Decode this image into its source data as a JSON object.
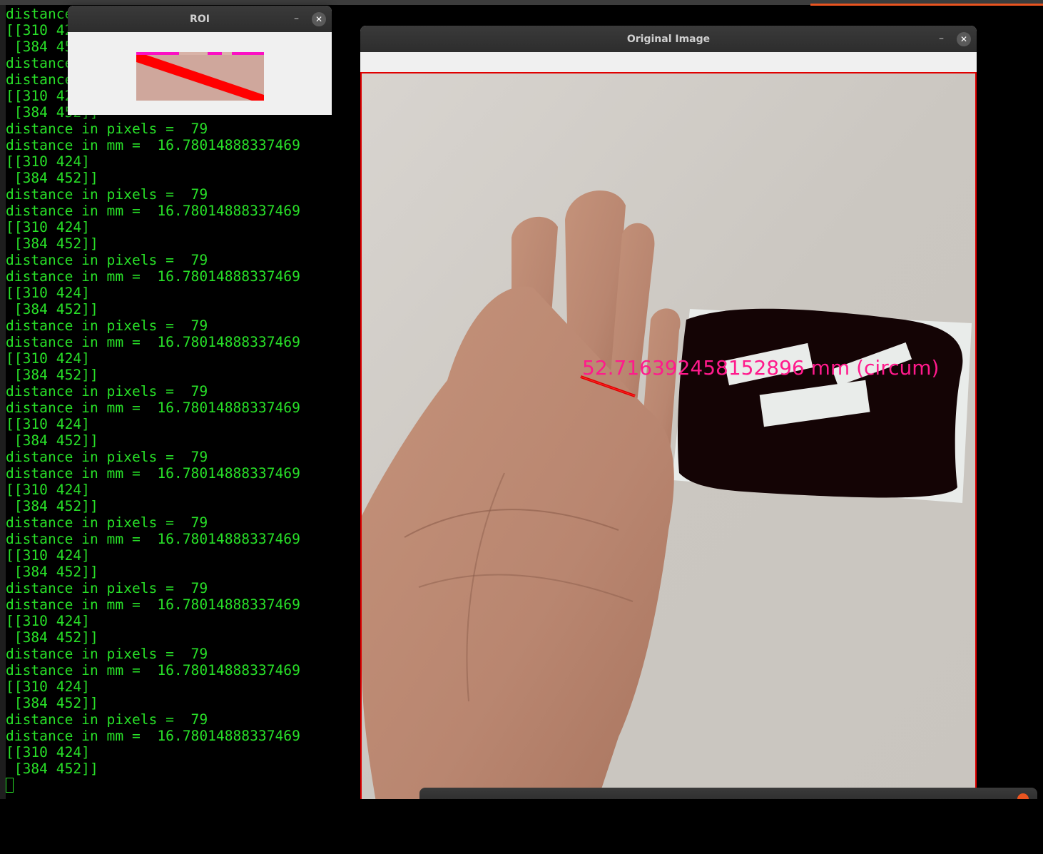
{
  "terminal": {
    "lines": [
      "distance in pixels =  79",
      "[[310 424]",
      " [384 452]]",
      "distance in pixels =  79",
      "distance in mm =  16.78014888337469",
      "[[310 424]",
      " [384 452]]",
      "distance in pixels =  79",
      "distance in mm =  16.78014888337469",
      "[[310 424]",
      " [384 452]]",
      "distance in pixels =  79",
      "distance in mm =  16.78014888337469",
      "[[310 424]",
      " [384 452]]",
      "distance in pixels =  79",
      "distance in mm =  16.78014888337469",
      "[[310 424]",
      " [384 452]]",
      "distance in pixels =  79",
      "distance in mm =  16.78014888337469",
      "[[310 424]",
      " [384 452]]",
      "distance in pixels =  79",
      "distance in mm =  16.78014888337469",
      "[[310 424]",
      " [384 452]]",
      "distance in pixels =  79",
      "distance in mm =  16.78014888337469",
      "[[310 424]",
      " [384 452]]",
      "distance in pixels =  79",
      "distance in mm =  16.78014888337469",
      "[[310 424]",
      " [384 452]]",
      "distance in pixels =  79",
      "distance in mm =  16.78014888337469",
      "[[310 424]",
      " [384 452]]",
      "distance in pixels =  79",
      "distance in mm =  16.78014888337469",
      "[[310 424]",
      " [384 452]]",
      "distance in pixels =  79",
      "distance in mm =  16.78014888337469",
      "[[310 424]",
      " [384 452]]"
    ],
    "text_color": "#28e028"
  },
  "roi_window": {
    "title": "ROI",
    "minimize_label": "–",
    "close_label": "✕"
  },
  "original_window": {
    "title": "Original Image",
    "minimize_label": "–",
    "close_label": "✕",
    "overlay_text": "52.716392458152896 mm (circum)",
    "overlay_color": "#ff1a8c",
    "measure_line_color": "#e00000"
  },
  "accent_color": "#e95420"
}
